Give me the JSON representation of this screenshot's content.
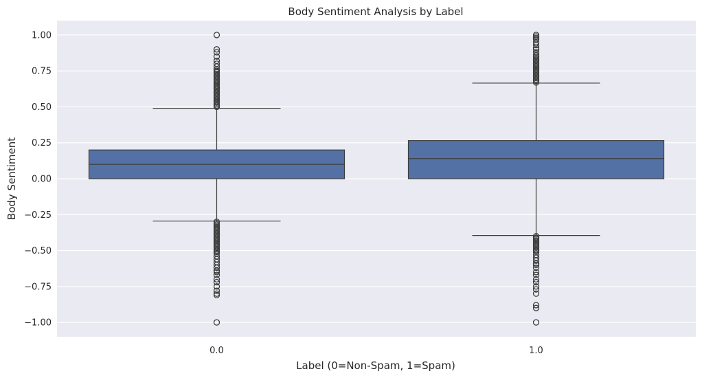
{
  "chart_data": {
    "type": "box",
    "title": "Body Sentiment Analysis by Label",
    "xlabel": "Label (0=Non-Spam, 1=Spam)",
    "ylabel": "Body Sentiment",
    "ylim": [
      -1.1,
      1.1
    ],
    "yticks": [
      {
        "value": 1.0,
        "label": "1.00"
      },
      {
        "value": 0.75,
        "label": "0.75"
      },
      {
        "value": 0.5,
        "label": "0.50"
      },
      {
        "value": 0.25,
        "label": "0.25"
      },
      {
        "value": 0.0,
        "label": "0.00"
      },
      {
        "value": -0.25,
        "label": "−0.25"
      },
      {
        "value": -0.5,
        "label": "−0.50"
      },
      {
        "value": -0.75,
        "label": "−0.75"
      },
      {
        "value": -1.0,
        "label": "−1.00"
      }
    ],
    "grid": true,
    "box_color": "#5471a6",
    "edge_color": "#3d3d3d",
    "background_color": "#eaeaf2",
    "categories": [
      "0.0",
      "1.0"
    ],
    "boxes": [
      {
        "category": "0.0",
        "q1": 0.0,
        "median": 0.1,
        "q3": 0.2,
        "whisker_low": -0.295,
        "whisker_high": 0.49,
        "outliers": [
          1.0,
          0.9,
          0.88,
          0.85,
          0.82,
          0.8,
          0.78,
          0.76,
          0.75,
          0.74,
          0.73,
          0.72,
          0.71,
          0.7,
          0.69,
          0.68,
          0.67,
          0.66,
          0.65,
          0.64,
          0.63,
          0.62,
          0.61,
          0.6,
          0.59,
          0.58,
          0.57,
          0.56,
          0.55,
          0.54,
          0.53,
          0.52,
          0.51,
          0.5,
          -0.3,
          -0.31,
          -0.32,
          -0.33,
          -0.34,
          -0.35,
          -0.36,
          -0.37,
          -0.38,
          -0.39,
          -0.4,
          -0.41,
          -0.42,
          -0.43,
          -0.44,
          -0.45,
          -0.46,
          -0.47,
          -0.48,
          -0.49,
          -0.5,
          -0.51,
          -0.52,
          -0.54,
          -0.56,
          -0.58,
          -0.6,
          -0.62,
          -0.64,
          -0.65,
          -0.67,
          -0.7,
          -0.72,
          -0.75,
          -0.78,
          -0.8,
          -0.81,
          -1.0
        ]
      },
      {
        "category": "1.0",
        "q1": 0.0,
        "median": 0.14,
        "q3": 0.265,
        "whisker_low": -0.395,
        "whisker_high": 0.665,
        "outliers": [
          1.0,
          0.99,
          0.98,
          0.97,
          0.95,
          0.93,
          0.91,
          0.9,
          0.88,
          0.86,
          0.85,
          0.84,
          0.83,
          0.82,
          0.81,
          0.8,
          0.79,
          0.78,
          0.77,
          0.76,
          0.75,
          0.74,
          0.73,
          0.72,
          0.71,
          0.7,
          0.69,
          0.68,
          0.67,
          -0.4,
          -0.41,
          -0.42,
          -0.43,
          -0.44,
          -0.45,
          -0.46,
          -0.47,
          -0.48,
          -0.49,
          -0.5,
          -0.51,
          -0.53,
          -0.55,
          -0.57,
          -0.59,
          -0.6,
          -0.62,
          -0.65,
          -0.67,
          -0.7,
          -0.72,
          -0.75,
          -0.77,
          -0.8,
          -0.88,
          -0.9,
          -1.0
        ]
      }
    ]
  }
}
